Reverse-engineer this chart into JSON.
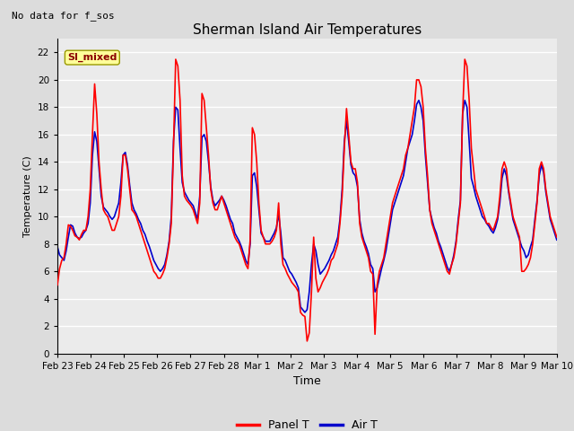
{
  "title": "Sherman Island Air Temperatures",
  "xlabel": "Time",
  "ylabel": "Temperature (C)",
  "no_data_label": "No data for f_sos",
  "legend_label": "SI_mixed",
  "panel_t_color": "#FF0000",
  "air_t_color": "#0000CC",
  "background_color": "#DCDCDC",
  "plot_bg_color": "#EBEBEB",
  "grid_color": "#FFFFFF",
  "ylim": [
    0,
    23
  ],
  "yticks": [
    0,
    2,
    4,
    6,
    8,
    10,
    12,
    14,
    16,
    18,
    20,
    22
  ],
  "x_tick_labels": [
    "Feb 23",
    "Feb 24",
    "Feb 25",
    "Feb 26",
    "Feb 27",
    "Feb 28",
    "Mar 1",
    "Mar 2",
    "Mar 3",
    "Mar 4",
    "Mar 5",
    "Mar 6",
    "Mar 7",
    "Mar 8",
    "Mar 9",
    "Mar 10"
  ],
  "panel_t": [
    5.0,
    6.2,
    6.8,
    7.0,
    8.0,
    9.4,
    9.3,
    9.0,
    8.6,
    8.5,
    8.3,
    8.7,
    9.0,
    9.0,
    10.0,
    12.0,
    16.0,
    19.7,
    17.5,
    14.0,
    12.0,
    10.5,
    10.2,
    10.0,
    9.5,
    9.0,
    9.0,
    9.5,
    10.0,
    11.5,
    14.5,
    14.5,
    13.5,
    12.0,
    10.5,
    10.3,
    10.0,
    9.5,
    9.0,
    8.5,
    8.0,
    7.5,
    7.0,
    6.5,
    6.0,
    5.8,
    5.5,
    5.5,
    5.8,
    6.2,
    7.0,
    8.0,
    9.5,
    15.0,
    21.5,
    21.0,
    18.5,
    13.0,
    11.5,
    11.2,
    11.0,
    10.8,
    10.5,
    10.0,
    9.5,
    11.0,
    19.0,
    18.5,
    16.5,
    14.5,
    12.0,
    11.0,
    10.5,
    10.5,
    11.0,
    11.5,
    11.0,
    10.5,
    10.0,
    9.5,
    9.0,
    8.5,
    8.2,
    8.0,
    7.5,
    7.0,
    6.5,
    6.2,
    8.3,
    16.5,
    16.0,
    14.0,
    11.0,
    9.0,
    8.5,
    8.0,
    8.0,
    8.0,
    8.2,
    8.5,
    9.0,
    11.0,
    8.0,
    6.5,
    6.2,
    5.8,
    5.5,
    5.2,
    5.0,
    4.8,
    4.5,
    3.0,
    2.8,
    2.7,
    0.9,
    1.5,
    4.5,
    8.5,
    5.5,
    4.5,
    4.8,
    5.2,
    5.5,
    5.8,
    6.2,
    6.8,
    7.0,
    7.5,
    8.0,
    9.5,
    11.5,
    15.0,
    17.9,
    16.0,
    14.0,
    13.5,
    13.5,
    12.5,
    9.5,
    8.5,
    8.0,
    7.5,
    7.0,
    6.0,
    5.8,
    1.4,
    5.0,
    6.0,
    6.5,
    7.0,
    8.0,
    9.0,
    10.0,
    11.0,
    11.5,
    12.0,
    12.5,
    13.0,
    13.5,
    14.5,
    15.0,
    16.0,
    17.0,
    18.0,
    20.0,
    20.0,
    19.5,
    18.0,
    15.0,
    13.0,
    10.5,
    9.5,
    9.0,
    8.5,
    8.0,
    7.5,
    7.0,
    6.5,
    6.0,
    5.8,
    6.5,
    7.0,
    8.0,
    9.5,
    11.0,
    17.5,
    21.5,
    21.0,
    18.5,
    15.0,
    13.5,
    12.0,
    11.5,
    11.0,
    10.5,
    10.0,
    9.5,
    9.5,
    9.2,
    9.0,
    9.5,
    10.0,
    11.5,
    13.5,
    14.0,
    13.5,
    12.0,
    11.0,
    10.0,
    9.5,
    9.0,
    8.5,
    6.0,
    6.0,
    6.2,
    6.5,
    7.0,
    8.0,
    9.5,
    11.0,
    13.5,
    14.0,
    13.5,
    12.0,
    11.0,
    10.0,
    9.5,
    9.0,
    8.5
  ],
  "air_t": [
    7.8,
    7.2,
    7.0,
    6.8,
    7.5,
    8.5,
    9.4,
    9.3,
    8.8,
    8.5,
    8.4,
    8.5,
    8.8,
    9.0,
    9.5,
    11.0,
    14.5,
    16.2,
    15.5,
    13.5,
    11.5,
    10.7,
    10.5,
    10.3,
    10.0,
    9.8,
    10.0,
    10.5,
    11.0,
    12.5,
    14.5,
    14.7,
    13.8,
    12.3,
    11.0,
    10.5,
    10.2,
    9.8,
    9.5,
    9.0,
    8.7,
    8.2,
    7.8,
    7.3,
    6.8,
    6.5,
    6.2,
    6.0,
    6.2,
    6.5,
    7.2,
    8.2,
    10.0,
    15.5,
    18.0,
    17.8,
    15.0,
    12.5,
    11.8,
    11.5,
    11.2,
    11.0,
    10.8,
    10.3,
    9.8,
    11.5,
    15.8,
    16.0,
    15.5,
    14.0,
    12.2,
    11.2,
    10.8,
    11.0,
    11.2,
    11.5,
    11.2,
    10.8,
    10.3,
    9.8,
    9.5,
    8.8,
    8.5,
    8.2,
    7.8,
    7.3,
    6.8,
    6.5,
    8.0,
    13.0,
    13.2,
    12.2,
    10.5,
    8.8,
    8.5,
    8.2,
    8.2,
    8.2,
    8.5,
    8.8,
    9.2,
    10.2,
    8.8,
    7.0,
    6.8,
    6.4,
    6.0,
    5.8,
    5.5,
    5.2,
    4.8,
    3.4,
    3.2,
    3.0,
    3.2,
    4.5,
    6.5,
    8.0,
    7.5,
    6.5,
    5.8,
    6.0,
    6.2,
    6.5,
    6.8,
    7.2,
    7.5,
    8.0,
    8.5,
    9.8,
    12.0,
    15.5,
    17.0,
    15.5,
    13.8,
    13.2,
    13.0,
    12.2,
    9.8,
    8.8,
    8.2,
    7.8,
    7.3,
    6.5,
    6.2,
    4.5,
    4.8,
    5.5,
    6.2,
    6.8,
    7.5,
    8.5,
    9.5,
    10.5,
    11.0,
    11.5,
    12.0,
    12.5,
    13.0,
    14.0,
    15.0,
    15.5,
    16.0,
    17.0,
    18.2,
    18.5,
    18.0,
    17.0,
    14.5,
    12.5,
    10.5,
    9.8,
    9.2,
    8.8,
    8.2,
    7.8,
    7.3,
    6.8,
    6.3,
    6.0,
    6.5,
    7.2,
    8.2,
    9.8,
    11.2,
    17.5,
    18.5,
    18.0,
    15.5,
    12.8,
    12.2,
    11.5,
    11.0,
    10.5,
    10.0,
    9.8,
    9.5,
    9.3,
    9.0,
    8.8,
    9.2,
    9.8,
    11.0,
    12.8,
    13.5,
    13.0,
    11.8,
    10.8,
    9.8,
    9.3,
    8.8,
    8.3,
    7.8,
    7.5,
    7.0,
    7.2,
    7.8,
    8.3,
    9.8,
    11.2,
    13.0,
    13.8,
    13.2,
    11.8,
    10.8,
    9.8,
    9.3,
    8.8,
    8.3
  ]
}
